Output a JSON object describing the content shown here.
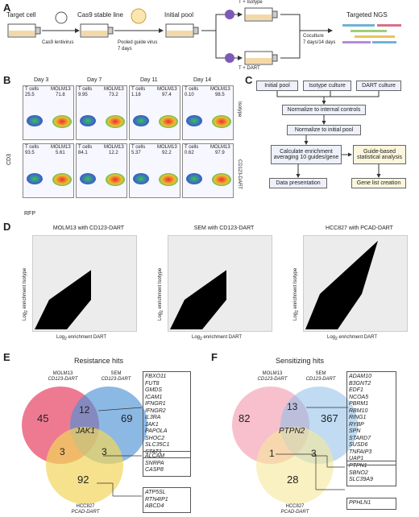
{
  "panelA": {
    "letter": "A",
    "target": "Target cell",
    "lenti": "Cas9 lentivirus",
    "stable": "Cas9 stable line",
    "pooled": "Pooled guide virus",
    "days7": "7 days",
    "initial": "Initial pool",
    "tIso": "T + Isotype",
    "tDart": "T + DART",
    "coculture": "Coculture",
    "coDays": "7 days/14 days",
    "ngs": "Targeted NGS"
  },
  "panelB": {
    "letter": "B",
    "days": [
      "Day 3",
      "Day 7",
      "Day 11",
      "Day 14"
    ],
    "rowLabels": [
      "Isotype",
      "CD123-DART"
    ],
    "tcellLabel": "T cells",
    "tumorLabel": "MOLM13",
    "isotype": [
      {
        "t": "25.5",
        "m": "71.8"
      },
      {
        "t": "9.95",
        "m": "73.2"
      },
      {
        "t": "1.18",
        "m": "97.4"
      },
      {
        "t": "0.10",
        "m": "98.5"
      }
    ],
    "dart": [
      {
        "t": "93.5",
        "m": "5.61"
      },
      {
        "t": "84.1",
        "m": "12.2"
      },
      {
        "t": "5.37",
        "m": "92.2"
      },
      {
        "t": "0.62",
        "m": "97.9"
      }
    ],
    "yaxis": "CD3",
    "xaxis": "RFP"
  },
  "panelC": {
    "letter": "C",
    "top": [
      "Initial pool",
      "Isotype culture",
      "DART culture"
    ],
    "norm1": "Normalize to internal controls",
    "norm2": "Normalize to initial pool",
    "calc1": "Calculate enrichment",
    "calc2": "averaging 10 guides/gene",
    "guide1": "Guide-based",
    "guide2": "statistical analysis",
    "present": "Data presentation",
    "genelist": "Gene list creation"
  },
  "panelD": {
    "letter": "D",
    "plots": [
      {
        "title": "MOLM13 with CD123-DART"
      },
      {
        "title": "SEM with CD123-DART"
      },
      {
        "title": "HCC827 with PCAD-DART"
      }
    ],
    "ylabel": "Log",
    "ysub": "2",
    "ylabel2": " enrichment Isotype",
    "xlabel": "Log",
    "xsub": "2",
    "xlabel2": " enrichment DART"
  },
  "panelE": {
    "letter": "E",
    "title": "Resistance hits",
    "set1": "MOLM13",
    "set1b": "CD123-DART",
    "set2": "SEM",
    "set2b": "CD123-DART",
    "set3": "HCC827",
    "set3b": "PCAD-DART",
    "n_only1": "45",
    "n_only2": "69",
    "n_only3": "92",
    "n_12": "12",
    "n_13": "3",
    "n_23": "3",
    "n_all": "JAK1",
    "genes12": [
      "FBXO11",
      "FUT8",
      "GMDS",
      "ICAM1",
      "IFNGR1",
      "IFNGR2",
      "IL3RA",
      "JAK1",
      "PAPOLA",
      "SHOC2",
      "SLC35C1",
      "STAT1"
    ],
    "genes23": [
      "ALCAM",
      "SNRPA",
      "CASP8"
    ],
    "genes13": [
      "ATP5SL",
      "RTN4IP1",
      "ABCD4"
    ]
  },
  "panelF": {
    "letter": "F",
    "title": "Sensitizing hits",
    "set1": "MOLM13",
    "set1b": "CD123-DART",
    "set2": "SEM",
    "set2b": "CD123-DART",
    "set3": "HCC827",
    "set3b": "PCAD-DART",
    "n_only1": "82",
    "n_only2": "367",
    "n_only3": "28",
    "n_12": "13",
    "n_13": "1",
    "n_23": "3",
    "n_all": "PTPN2",
    "genes12": [
      "ADAM10",
      "B3GNT2",
      "EDF1",
      "NCOA5",
      "PBRM1",
      "RBM10",
      "RING1",
      "RYBP",
      "SPN",
      "STARD7",
      "SUSD6",
      "TNFAIP3",
      "UAP1"
    ],
    "genes23": [
      "PTPN1",
      "SBNO2",
      "SLC39A9"
    ],
    "genes13": [
      "PPHLN1"
    ]
  }
}
